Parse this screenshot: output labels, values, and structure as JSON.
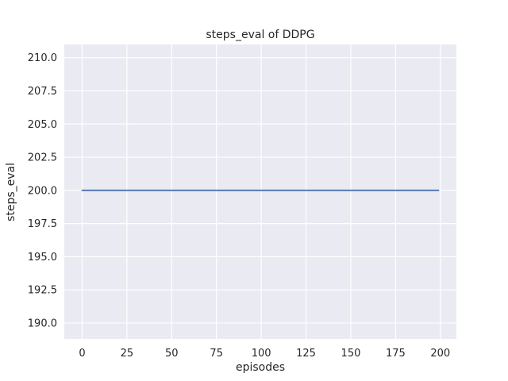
{
  "figure": {
    "background": "#ffffff",
    "text_color": "#262626"
  },
  "chart_data": {
    "type": "line",
    "title": "steps_eval of DDPG",
    "xlabel": "episodes",
    "ylabel": "steps_eval",
    "xlim": [
      -9.95,
      208.95
    ],
    "ylim": [
      188.8,
      211.0
    ],
    "xticks": [
      0,
      25,
      50,
      75,
      100,
      125,
      150,
      175,
      200
    ],
    "xtick_labels": [
      "0",
      "25",
      "50",
      "75",
      "100",
      "125",
      "150",
      "175",
      "200"
    ],
    "yticks": [
      190.0,
      192.5,
      195.0,
      197.5,
      200.0,
      202.5,
      205.0,
      207.5,
      210.0
    ],
    "ytick_labels": [
      "190.0",
      "192.5",
      "195.0",
      "197.5",
      "200.0",
      "202.5",
      "205.0",
      "207.5",
      "210.0"
    ],
    "grid": true,
    "legend": null,
    "plot_bg": "#eaeaf2",
    "grid_color": "#ffffff",
    "series": [
      {
        "name": "steps_eval",
        "color": "#4c72b0",
        "constant_value": 200,
        "x": [
          0,
          199
        ],
        "y": [
          200,
          200
        ]
      }
    ]
  }
}
